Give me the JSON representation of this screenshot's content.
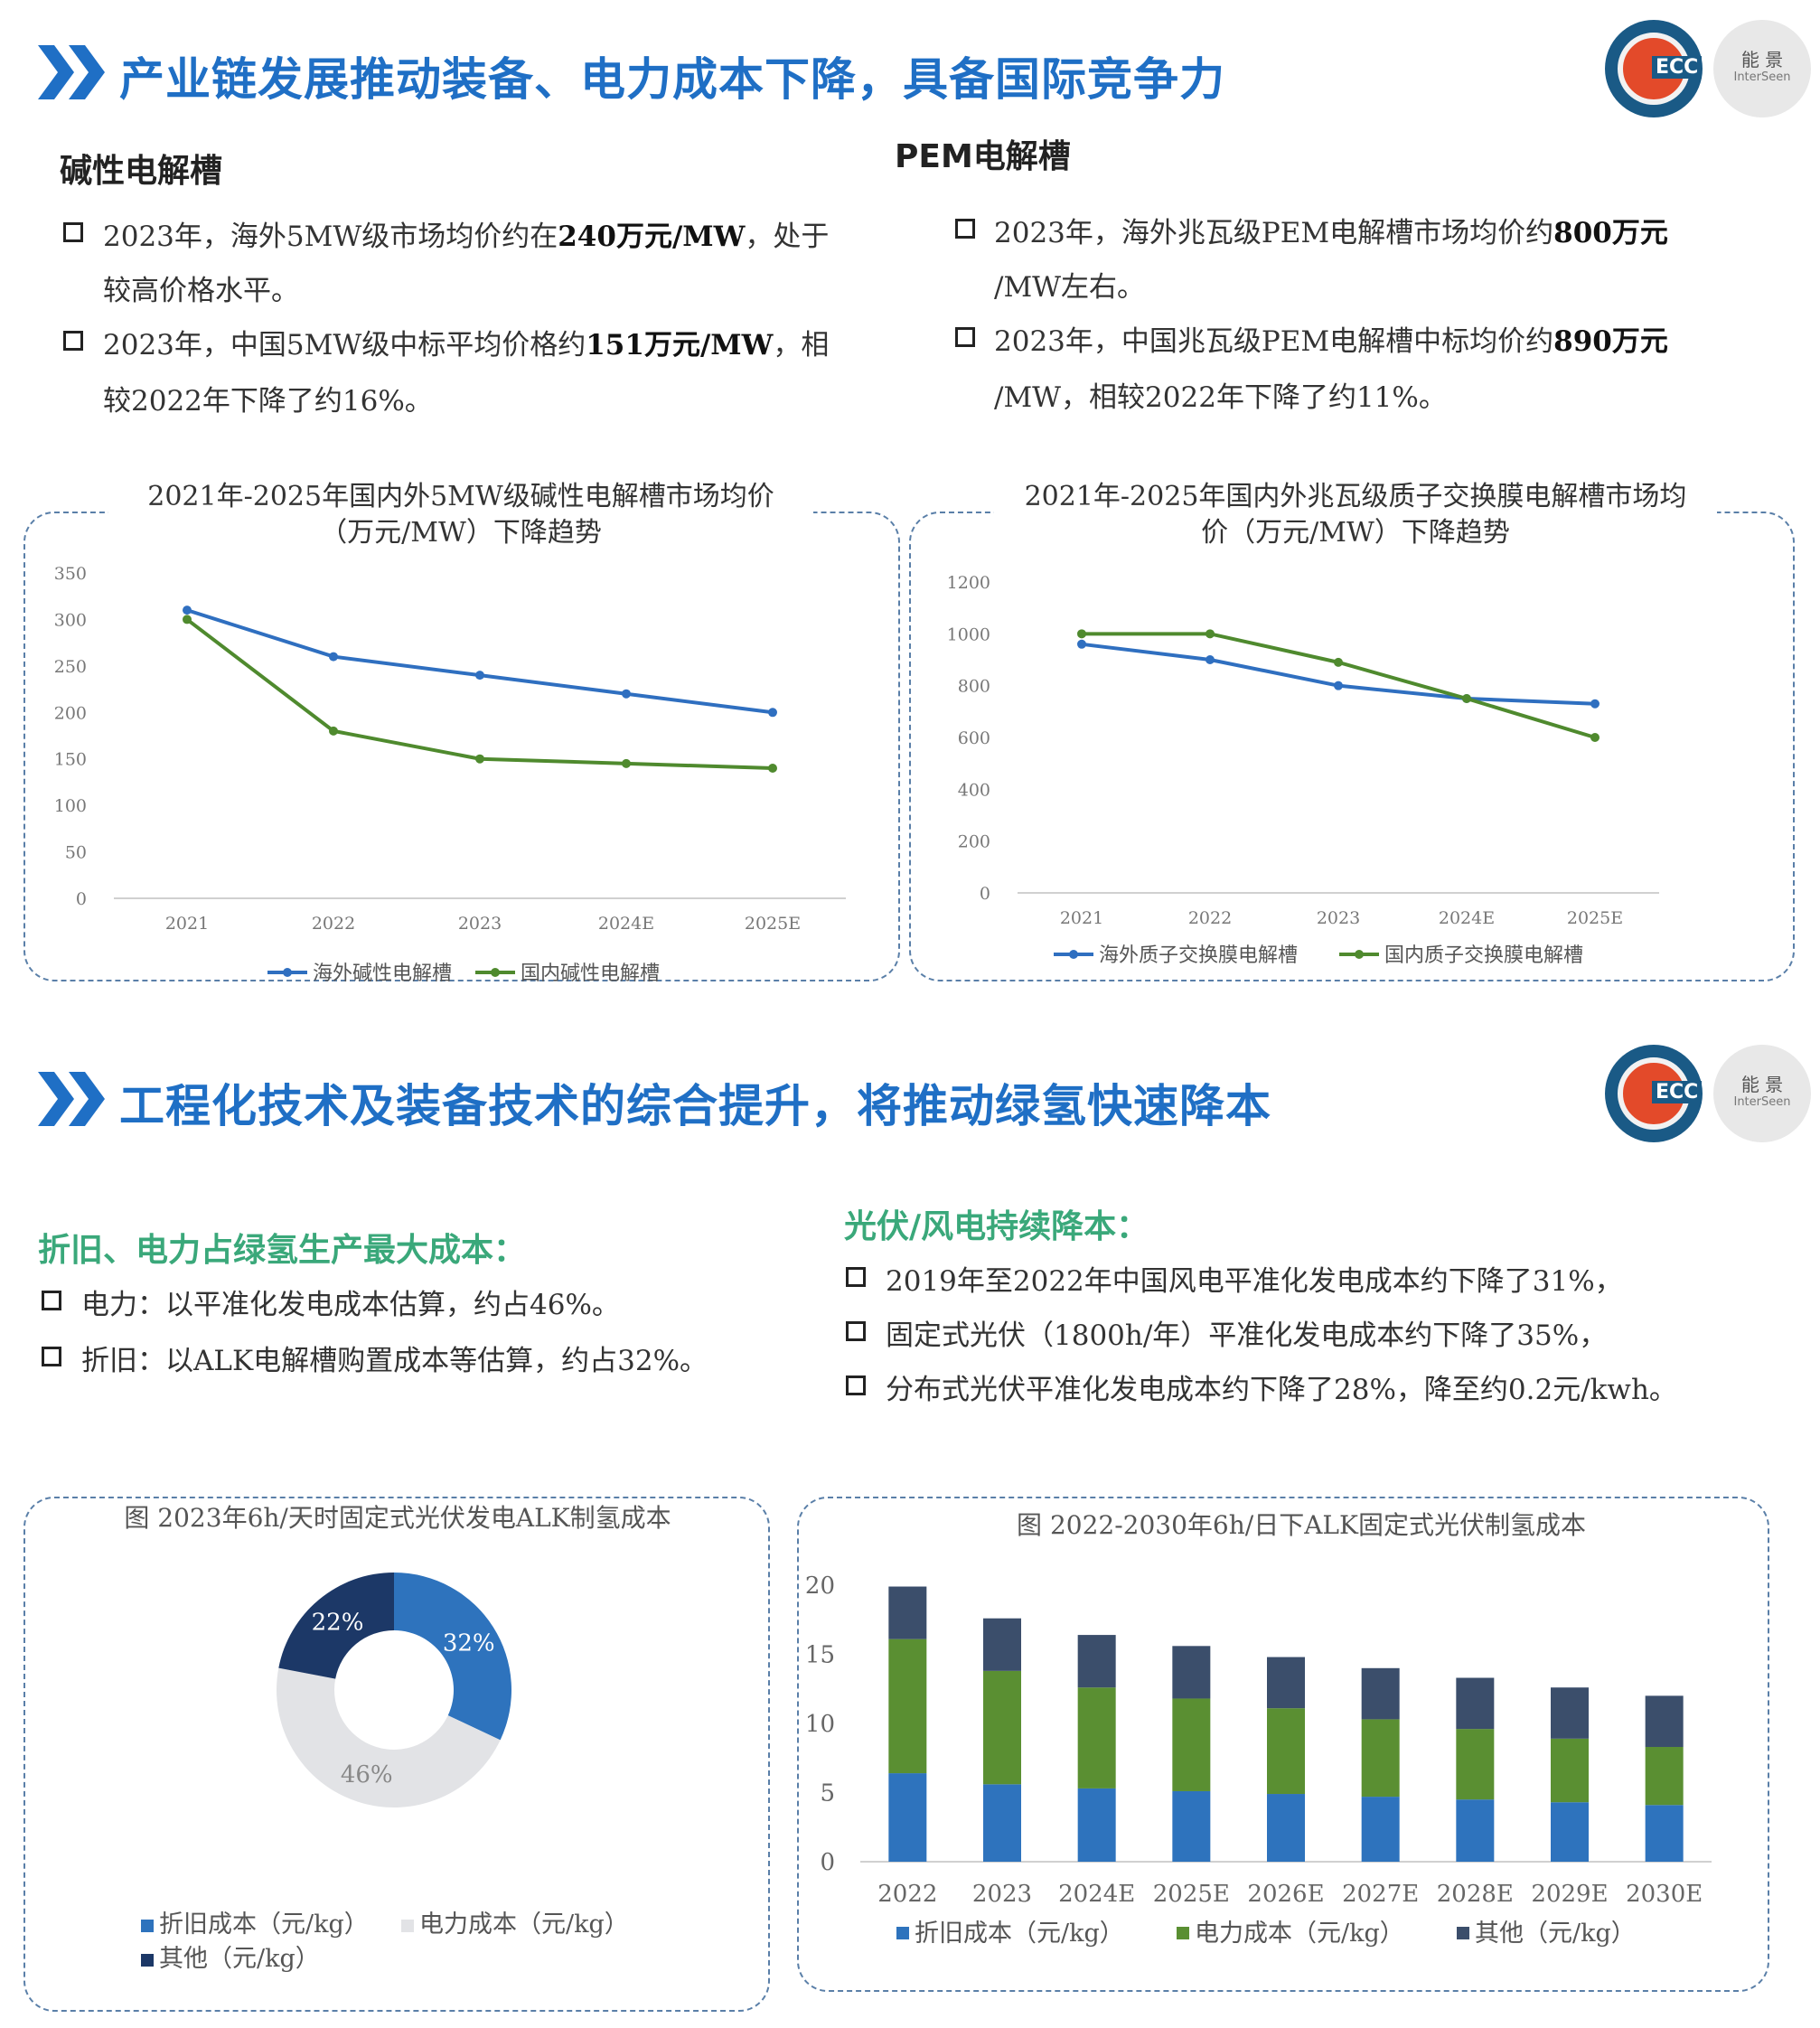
{
  "section1": {
    "title": "产业链发展推动装备、电力成本下降，具备国际竞争力",
    "logo_ecc": "ECC",
    "logo_cn": "能 景",
    "logo_en": "InterSeen",
    "alk": {
      "heading": "碱性电解槽",
      "bullets": [
        {
          "line1_a": "2023年，海外5MW级市场均价约在",
          "line1_b": "240万元/MW",
          "line1_c": "，处于",
          "line2": "较高价格水平。"
        },
        {
          "line1_a": "2023年，中国5MW级中标平均价格约",
          "line1_b": "151万元/MW",
          "line1_c": "，相",
          "line2": "较2022年下降了约16%。"
        }
      ]
    },
    "pem": {
      "heading": "PEM电解槽",
      "bullets": [
        {
          "line1_a": "2023年，海外兆瓦级PEM电解槽市场均价约",
          "line1_b": "800万元",
          "line2": "/MW左右。"
        },
        {
          "line1_a": "2023年，中国兆瓦级PEM电解槽中标均价约",
          "line1_b": "890万元",
          "line2": "/MW，相较2022年下降了约11%。"
        }
      ]
    }
  },
  "section2": {
    "title": "工程化技术及装备技术的综合提升，将推动绿氢快速降本",
    "left_heading": "折旧、电力占绿氢生产最大成本：",
    "left_bullets": [
      "电力：以平准化发电成本估算，约占46%。",
      "折旧：以ALK电解槽购置成本等估算，约占32%。"
    ],
    "right_heading": "光伏/风电持续降本：",
    "right_bullets": [
      "2019年至2022年中国风电平准化发电成本约下降了31%，",
      "固定式光伏（1800h/年）平准化发电成本约下降了35%，",
      "分布式光伏平准化发电成本约下降了28%，降至约0.2元/kwh。"
    ]
  },
  "chart_data": [
    {
      "type": "line",
      "title_line1": "2021年-2025年国内外5MW级碱性电解槽市场均价",
      "title_line2": "（万元/MW）下降趋势",
      "categories": [
        "2021",
        "2022",
        "2023",
        "2024E",
        "2025E"
      ],
      "ylim": [
        0,
        350
      ],
      "yticks": [
        "0",
        "50",
        "100",
        "150",
        "200",
        "250",
        "300",
        "350"
      ],
      "series": [
        {
          "name": "海外碱性电解槽",
          "color": "#2f6fc0",
          "values": [
            310,
            260,
            240,
            220,
            200
          ]
        },
        {
          "name": "国内碱性电解槽",
          "color": "#4f8a2e",
          "values": [
            300,
            180,
            150,
            145,
            140
          ]
        }
      ]
    },
    {
      "type": "line",
      "title_line1": "2021年-2025年国内外兆瓦级质子交换膜电解槽市场均",
      "title_line2": "价（万元/MW）下降趋势",
      "categories": [
        "2021",
        "2022",
        "2023",
        "2024E",
        "2025E"
      ],
      "ylim": [
        0,
        1200
      ],
      "yticks": [
        "0",
        "200",
        "400",
        "600",
        "800",
        "1000",
        "1200"
      ],
      "series": [
        {
          "name": "海外质子交换膜电解槽",
          "color": "#2f6fc0",
          "values": [
            960,
            900,
            800,
            750,
            730
          ]
        },
        {
          "name": "国内质子交换膜电解槽",
          "color": "#4f8a2e",
          "values": [
            1000,
            1000,
            890,
            750,
            600
          ]
        }
      ]
    },
    {
      "type": "pie",
      "title": "图 2023年6h/天时固定式光伏发电ALK制氢成本",
      "slices": [
        {
          "name": "折旧成本（元/kg）",
          "label": "32%",
          "value": 32,
          "color": "#2e73bd"
        },
        {
          "name": "电力成本（元/kg）",
          "label": "46%",
          "value": 46,
          "color": "#e2e3e6"
        },
        {
          "name": "其他（元/kg）",
          "label": "22%",
          "value": 22,
          "color": "#1c3867"
        }
      ]
    },
    {
      "type": "bar",
      "title": "图 2022-2030年6h/日下ALK固定式光伏制氢成本",
      "categories": [
        "2022",
        "2023",
        "2024E",
        "2025E",
        "2026E",
        "2027E",
        "2028E",
        "2029E",
        "2030E"
      ],
      "ylim": [
        0,
        20
      ],
      "yticks": [
        "0",
        "5",
        "10",
        "15",
        "20"
      ],
      "series": [
        {
          "name": "折旧成本（元/kg）",
          "color": "#2e73bd",
          "values": [
            6.4,
            5.6,
            5.3,
            5.1,
            4.9,
            4.7,
            4.5,
            4.3,
            4.1
          ]
        },
        {
          "name": "电力成本（元/kg）",
          "color": "#5a8f32",
          "values": [
            9.7,
            8.2,
            7.3,
            6.7,
            6.2,
            5.6,
            5.1,
            4.6,
            4.2
          ]
        },
        {
          "name": "其他（元/kg）",
          "color": "#3b4e6b",
          "values": [
            3.8,
            3.8,
            3.8,
            3.8,
            3.7,
            3.7,
            3.7,
            3.7,
            3.7
          ]
        }
      ]
    }
  ]
}
